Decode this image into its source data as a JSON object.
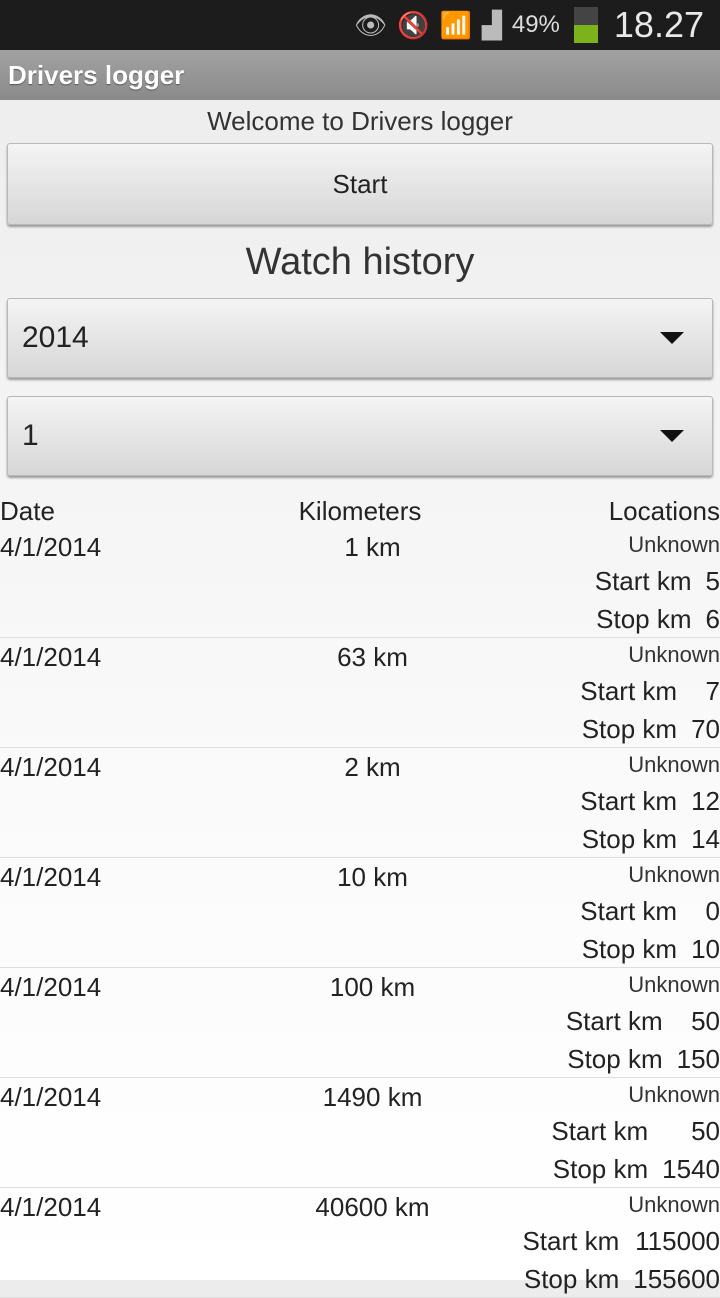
{
  "status_bar": {
    "battery": "49%",
    "time": "18.27",
    "battery_level": 0.49,
    "icons": [
      "eye-icon",
      "mute-icon",
      "wifi-icon",
      "signal-icon",
      "battery-icon"
    ]
  },
  "app": {
    "title": "Drivers logger",
    "welcome": "Welcome to Drivers logger",
    "start_label": "Start",
    "history_title": "Watch history"
  },
  "year_spinner": {
    "value": "2014"
  },
  "month_spinner": {
    "value": "1"
  },
  "table": {
    "headers": {
      "date": "Date",
      "km": "Kilometers",
      "locations": "Locations"
    },
    "rows": [
      {
        "date": "4/1/2014",
        "km": "1 km",
        "location": "Unknown",
        "start_label": "Start km",
        "start": "5",
        "stop_label": "Stop km",
        "stop": "6"
      },
      {
        "date": "4/1/2014",
        "km": "63 km",
        "location": "Unknown",
        "start_label": "Start km",
        "start": "7",
        "stop_label": "Stop km",
        "stop": "70"
      },
      {
        "date": "4/1/2014",
        "km": "2 km",
        "location": "Unknown",
        "start_label": "Start km",
        "start": "12",
        "stop_label": "Stop km",
        "stop": "14"
      },
      {
        "date": "4/1/2014",
        "km": "10 km",
        "location": "Unknown",
        "start_label": "Start km",
        "start": "0",
        "stop_label": "Stop km",
        "stop": "10"
      },
      {
        "date": "4/1/2014",
        "km": "100 km",
        "location": "Unknown",
        "start_label": "Start km",
        "start": "50",
        "stop_label": "Stop km",
        "stop": "150"
      },
      {
        "date": "4/1/2014",
        "km": "1490 km",
        "location": "Unknown",
        "start_label": "Start km",
        "start": "50",
        "stop_label": "Stop km",
        "stop": "1540"
      },
      {
        "date": "4/1/2014",
        "km": "40600 km",
        "location": "Unknown",
        "start_label": "Start km",
        "start": "115000",
        "stop_label": "Stop km",
        "stop": "155600"
      }
    ]
  }
}
